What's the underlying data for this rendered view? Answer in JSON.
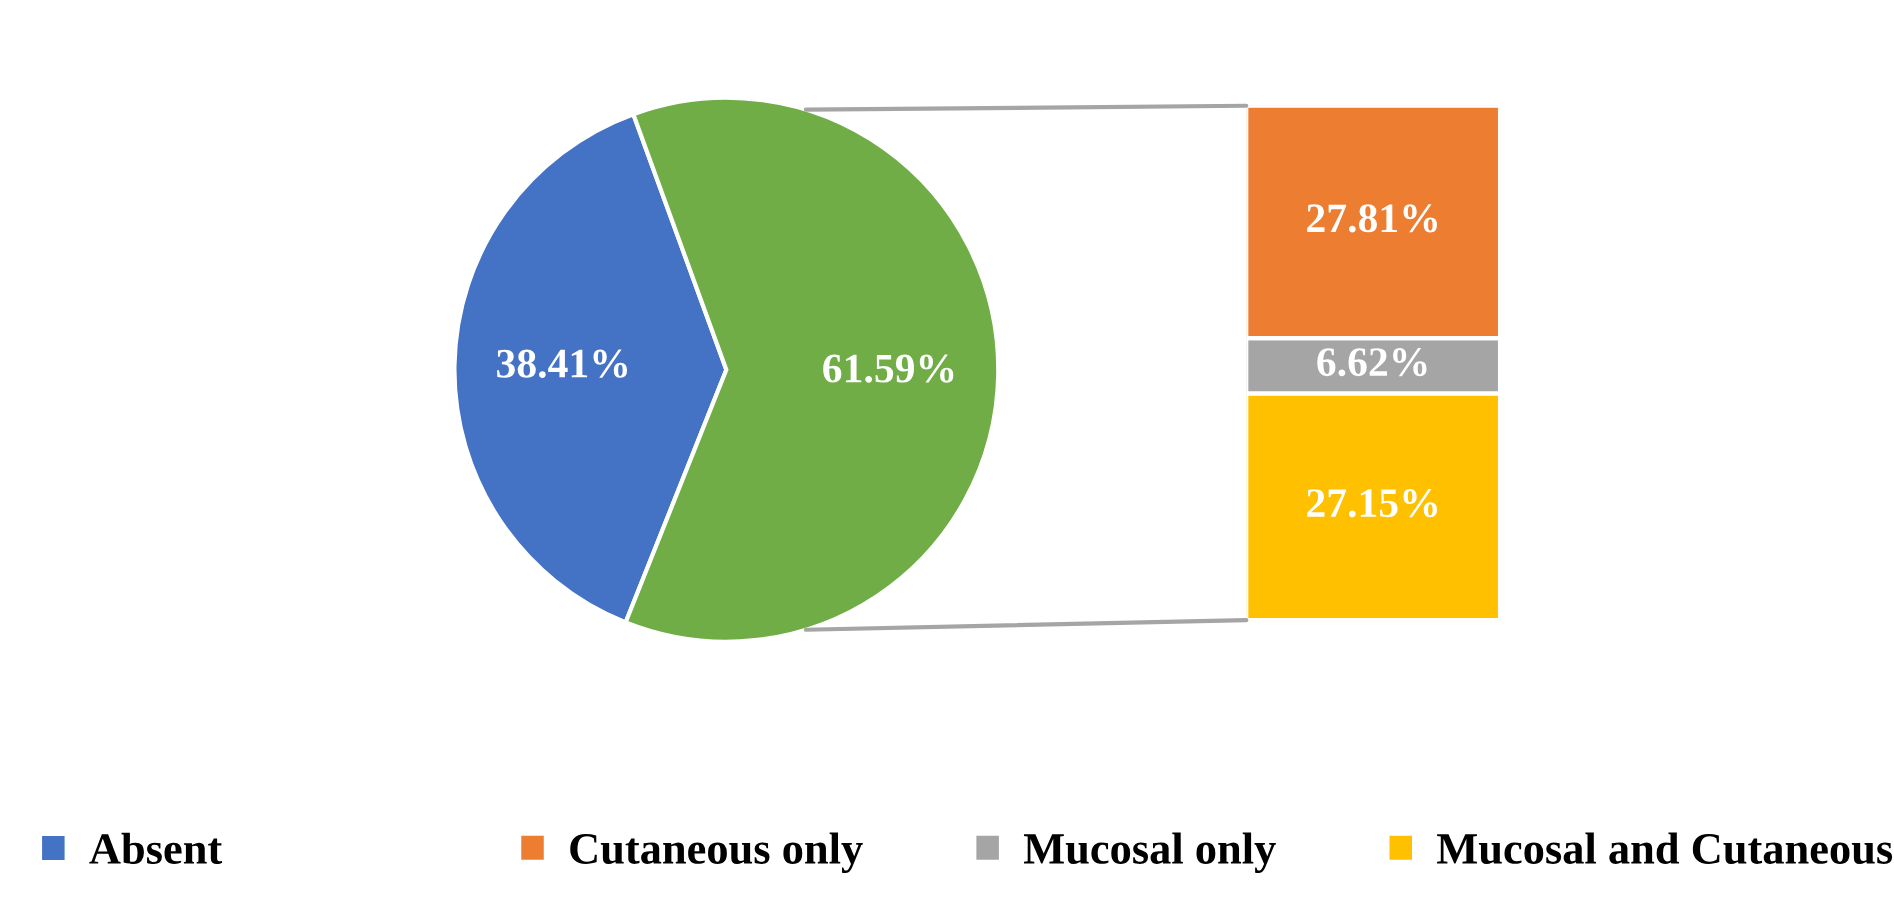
{
  "chart_data": [
    {
      "type": "pie",
      "categories": [
        "Absent",
        null
      ],
      "values": [
        38.41,
        61.59
      ],
      "colors": [
        "#4472c4",
        "#70ad47"
      ],
      "value_labels": [
        "38.41%",
        "61.59%"
      ],
      "legend": "bottom left"
    },
    {
      "type": "bar",
      "stacked": true,
      "categories": [
        null
      ],
      "legend": "bottom left",
      "series": [
        {
          "name": "Mucosal and Cutaneous",
          "color": "#ffc000",
          "values": [
            27.15
          ],
          "value_labels": [
            "27.15%"
          ]
        },
        {
          "name": "Mucosal only",
          "color": "#a5a5a5",
          "values": [
            6.62
          ],
          "value_labels": [
            "6.62%"
          ]
        },
        {
          "name": "Cutaneous only",
          "color": "#ed7d31",
          "values": [
            27.81
          ],
          "value_labels": [
            "27.81%"
          ]
        }
      ]
    }
  ]
}
